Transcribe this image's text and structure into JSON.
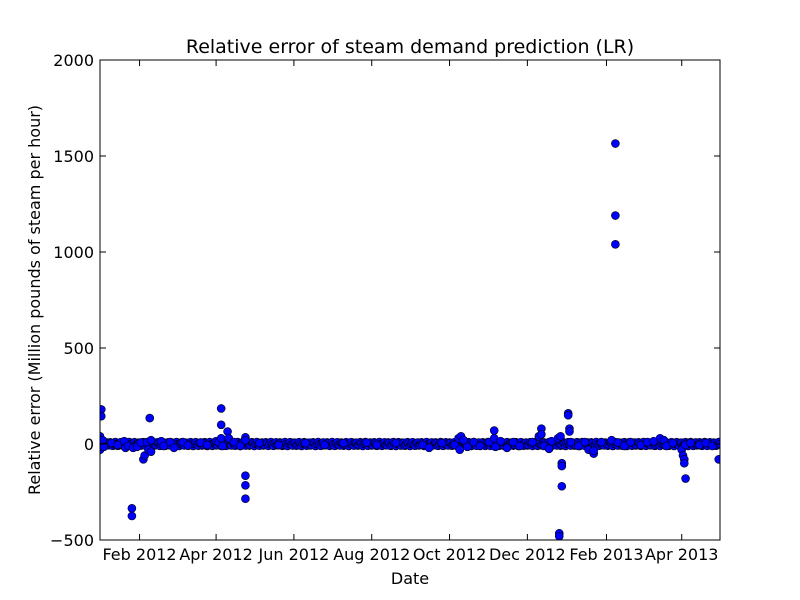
{
  "chart_data": {
    "type": "scatter",
    "title": "Relative error of steam demand prediction (LR)",
    "xlabel": "Date",
    "ylabel": "Relative error (Million pounds of steam per hour)",
    "ylim": [
      -500,
      2000
    ],
    "xlim": [
      "2012-01-01",
      "2013-05-01"
    ],
    "grid": false,
    "colors": {
      "marker_fill": "#0000ff",
      "marker_edge": "#000000",
      "axes": "#000000",
      "background": "#ffffff"
    },
    "x_ticks": [
      {
        "date": "2012-02-01",
        "label": "Feb 2012"
      },
      {
        "date": "2012-04-01",
        "label": "Apr 2012"
      },
      {
        "date": "2012-06-01",
        "label": "Jun 2012"
      },
      {
        "date": "2012-08-01",
        "label": "Aug 2012"
      },
      {
        "date": "2012-10-01",
        "label": "Oct 2012"
      },
      {
        "date": "2012-12-01",
        "label": "Dec 2012"
      },
      {
        "date": "2013-02-01",
        "label": "Feb 2013"
      },
      {
        "date": "2013-04-01",
        "label": "Apr 2013"
      }
    ],
    "y_ticks": [
      {
        "value": -500,
        "label": "−500"
      },
      {
        "value": 0,
        "label": "0"
      },
      {
        "value": 500,
        "label": "500"
      },
      {
        "value": 1000,
        "label": "1000"
      },
      {
        "value": 1500,
        "label": "1500"
      },
      {
        "value": 2000,
        "label": "2000"
      }
    ],
    "baseline_band": {
      "x_start": "2012-01-01",
      "x_end": "2013-05-01",
      "y_low": -10,
      "y_high": 10
    },
    "points": [
      {
        "x": "2012-01-01",
        "y": -30
      },
      {
        "x": "2012-01-01",
        "y": 40
      },
      {
        "x": "2012-01-01",
        "y": -10
      },
      {
        "x": "2012-01-02",
        "y": 180
      },
      {
        "x": "2012-01-02",
        "y": 145
      },
      {
        "x": "2012-01-03",
        "y": 20
      },
      {
        "x": "2012-01-04",
        "y": -15
      },
      {
        "x": "2012-01-10",
        "y": 5
      },
      {
        "x": "2012-01-15",
        "y": -5
      },
      {
        "x": "2012-01-20",
        "y": 15
      },
      {
        "x": "2012-01-21",
        "y": -20
      },
      {
        "x": "2012-01-23",
        "y": -10
      },
      {
        "x": "2012-01-26",
        "y": -335
      },
      {
        "x": "2012-01-26",
        "y": -375
      },
      {
        "x": "2012-01-27",
        "y": -20
      },
      {
        "x": "2012-01-30",
        "y": -15
      },
      {
        "x": "2012-02-02",
        "y": 8
      },
      {
        "x": "2012-02-04",
        "y": -80
      },
      {
        "x": "2012-02-05",
        "y": -60
      },
      {
        "x": "2012-02-07",
        "y": 10
      },
      {
        "x": "2012-02-08",
        "y": -30
      },
      {
        "x": "2012-02-09",
        "y": 135
      },
      {
        "x": "2012-02-10",
        "y": 20
      },
      {
        "x": "2012-02-10",
        "y": -40
      },
      {
        "x": "2012-02-18",
        "y": 15
      },
      {
        "x": "2012-02-20",
        "y": -10
      },
      {
        "x": "2012-02-25",
        "y": 10
      },
      {
        "x": "2012-02-28",
        "y": -20
      },
      {
        "x": "2012-03-06",
        "y": 10
      },
      {
        "x": "2012-03-10",
        "y": -8
      },
      {
        "x": "2012-03-20",
        "y": 8
      },
      {
        "x": "2012-03-25",
        "y": -5
      },
      {
        "x": "2012-04-01",
        "y": 15
      },
      {
        "x": "2012-04-03",
        "y": 10
      },
      {
        "x": "2012-04-05",
        "y": 30
      },
      {
        "x": "2012-04-05",
        "y": 185
      },
      {
        "x": "2012-04-05",
        "y": 100
      },
      {
        "x": "2012-04-06",
        "y": -10
      },
      {
        "x": "2012-04-10",
        "y": 65
      },
      {
        "x": "2012-04-11",
        "y": 30
      },
      {
        "x": "2012-04-15",
        "y": 10
      },
      {
        "x": "2012-04-20",
        "y": -10
      },
      {
        "x": "2012-04-24",
        "y": 35
      },
      {
        "x": "2012-04-24",
        "y": 20
      },
      {
        "x": "2012-04-24",
        "y": -165
      },
      {
        "x": "2012-04-24",
        "y": -215
      },
      {
        "x": "2012-04-24",
        "y": -285
      },
      {
        "x": "2012-05-05",
        "y": 5
      },
      {
        "x": "2012-05-20",
        "y": -5
      },
      {
        "x": "2012-06-10",
        "y": 5
      },
      {
        "x": "2012-06-25",
        "y": -5
      },
      {
        "x": "2012-07-10",
        "y": 5
      },
      {
        "x": "2012-07-28",
        "y": 8
      },
      {
        "x": "2012-08-05",
        "y": -5
      },
      {
        "x": "2012-08-20",
        "y": 5
      },
      {
        "x": "2012-09-10",
        "y": -5
      },
      {
        "x": "2012-09-15",
        "y": -20
      },
      {
        "x": "2012-09-25",
        "y": 5
      },
      {
        "x": "2012-10-05",
        "y": -5
      },
      {
        "x": "2012-10-08",
        "y": 30
      },
      {
        "x": "2012-10-09",
        "y": -30
      },
      {
        "x": "2012-10-10",
        "y": 40
      },
      {
        "x": "2012-10-12",
        "y": 20
      },
      {
        "x": "2012-10-15",
        "y": -15
      },
      {
        "x": "2012-10-20",
        "y": 10
      },
      {
        "x": "2012-10-25",
        "y": -10
      },
      {
        "x": "2012-11-01",
        "y": 10
      },
      {
        "x": "2012-11-05",
        "y": 70
      },
      {
        "x": "2012-11-05",
        "y": 30
      },
      {
        "x": "2012-11-06",
        "y": -15
      },
      {
        "x": "2012-11-10",
        "y": 15
      },
      {
        "x": "2012-11-15",
        "y": -20
      },
      {
        "x": "2012-11-20",
        "y": 10
      },
      {
        "x": "2012-11-25",
        "y": -10
      },
      {
        "x": "2012-12-05",
        "y": 10
      },
      {
        "x": "2012-12-10",
        "y": 40
      },
      {
        "x": "2012-12-12",
        "y": 80
      },
      {
        "x": "2012-12-12",
        "y": 50
      },
      {
        "x": "2012-12-14",
        "y": -10
      },
      {
        "x": "2012-12-18",
        "y": -25
      },
      {
        "x": "2012-12-20",
        "y": 15
      },
      {
        "x": "2012-12-25",
        "y": 30
      },
      {
        "x": "2012-12-26",
        "y": -465
      },
      {
        "x": "2012-12-26",
        "y": -480
      },
      {
        "x": "2012-12-27",
        "y": 40
      },
      {
        "x": "2012-12-28",
        "y": -100
      },
      {
        "x": "2012-12-28",
        "y": -115
      },
      {
        "x": "2012-12-28",
        "y": -220
      },
      {
        "x": "2013-01-02",
        "y": 160
      },
      {
        "x": "2013-01-02",
        "y": 150
      },
      {
        "x": "2013-01-03",
        "y": 80
      },
      {
        "x": "2013-01-03",
        "y": 65
      },
      {
        "x": "2013-01-04",
        "y": 10
      },
      {
        "x": "2013-01-10",
        "y": -10
      },
      {
        "x": "2013-01-15",
        "y": 10
      },
      {
        "x": "2013-01-18",
        "y": -30
      },
      {
        "x": "2013-01-22",
        "y": -50
      },
      {
        "x": "2013-01-22",
        "y": -35
      },
      {
        "x": "2013-01-28",
        "y": 10
      },
      {
        "x": "2013-02-05",
        "y": 20
      },
      {
        "x": "2013-02-08",
        "y": 1565
      },
      {
        "x": "2013-02-08",
        "y": 1190
      },
      {
        "x": "2013-02-08",
        "y": 1040
      },
      {
        "x": "2013-02-10",
        "y": 8
      },
      {
        "x": "2013-02-15",
        "y": -10
      },
      {
        "x": "2013-02-20",
        "y": 10
      },
      {
        "x": "2013-02-28",
        "y": -5
      },
      {
        "x": "2013-03-05",
        "y": 10
      },
      {
        "x": "2013-03-10",
        "y": 15
      },
      {
        "x": "2013-03-15",
        "y": 30
      },
      {
        "x": "2013-03-18",
        "y": 20
      },
      {
        "x": "2013-03-20",
        "y": -10
      },
      {
        "x": "2013-03-25",
        "y": 5
      },
      {
        "x": "2013-04-01",
        "y": -30
      },
      {
        "x": "2013-04-02",
        "y": -60
      },
      {
        "x": "2013-04-03",
        "y": -80
      },
      {
        "x": "2013-04-03",
        "y": -100
      },
      {
        "x": "2013-04-04",
        "y": -180
      },
      {
        "x": "2013-04-04",
        "y": -5
      },
      {
        "x": "2013-04-08",
        "y": 5
      },
      {
        "x": "2013-04-15",
        "y": -5
      },
      {
        "x": "2013-04-20",
        "y": 5
      },
      {
        "x": "2013-04-25",
        "y": -10
      },
      {
        "x": "2013-04-30",
        "y": -80
      }
    ]
  }
}
